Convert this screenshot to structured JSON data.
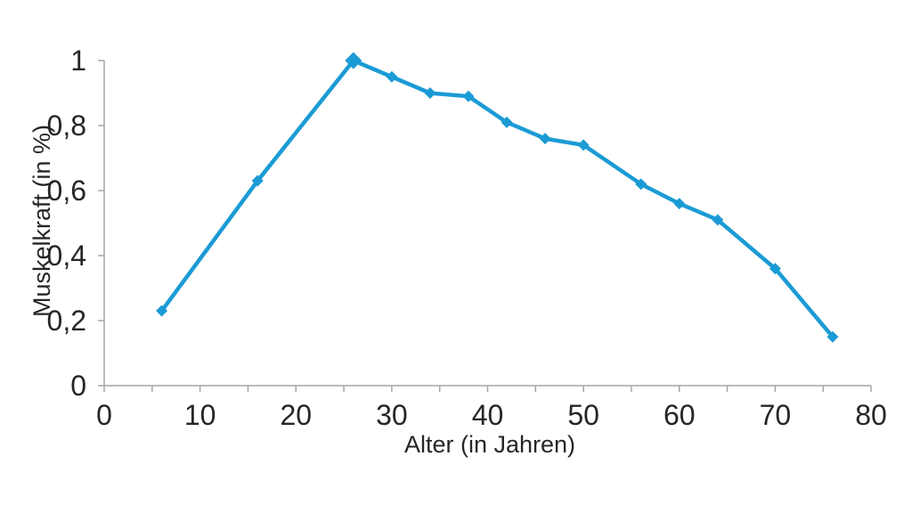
{
  "chart_data": {
    "type": "line",
    "title": "",
    "xlabel": "Alter (in Jahren)",
    "ylabel": "Muskelkraft (in %)",
    "xlim": [
      0,
      80
    ],
    "ylim": [
      0,
      1
    ],
    "grid": false,
    "legend": "none",
    "line_color": "#1B9BD5",
    "axis_color": "#A6A6A6",
    "text_color": "#262626",
    "marker": "diamond",
    "emphasized_point_index": 2,
    "points": [
      {
        "x": 6,
        "y": 0.23
      },
      {
        "x": 16,
        "y": 0.63
      },
      {
        "x": 26,
        "y": 1.0
      },
      {
        "x": 30,
        "y": 0.95
      },
      {
        "x": 34,
        "y": 0.9
      },
      {
        "x": 38,
        "y": 0.89
      },
      {
        "x": 42,
        "y": 0.81
      },
      {
        "x": 46,
        "y": 0.76
      },
      {
        "x": 50,
        "y": 0.74
      },
      {
        "x": 56,
        "y": 0.62
      },
      {
        "x": 60,
        "y": 0.56
      },
      {
        "x": 64,
        "y": 0.51
      },
      {
        "x": 70,
        "y": 0.36
      },
      {
        "x": 76,
        "y": 0.15
      }
    ],
    "x_ticks": [
      {
        "value": 0,
        "label": "0"
      },
      {
        "value": 10,
        "label": "10"
      },
      {
        "value": 20,
        "label": "20"
      },
      {
        "value": 30,
        "label": "30"
      },
      {
        "value": 40,
        "label": "40"
      },
      {
        "value": 50,
        "label": "50"
      },
      {
        "value": 60,
        "label": "60"
      },
      {
        "value": 70,
        "label": "70"
      },
      {
        "value": 80,
        "label": "80"
      }
    ],
    "x_minor_tick_step": 5,
    "y_ticks": [
      {
        "value": 0,
        "label": "0"
      },
      {
        "value": 0.2,
        "label": "0,2"
      },
      {
        "value": 0.4,
        "label": "0,4"
      },
      {
        "value": 0.6,
        "label": "0,6"
      },
      {
        "value": 0.8,
        "label": "0,8"
      },
      {
        "value": 1,
        "label": "1"
      }
    ]
  }
}
